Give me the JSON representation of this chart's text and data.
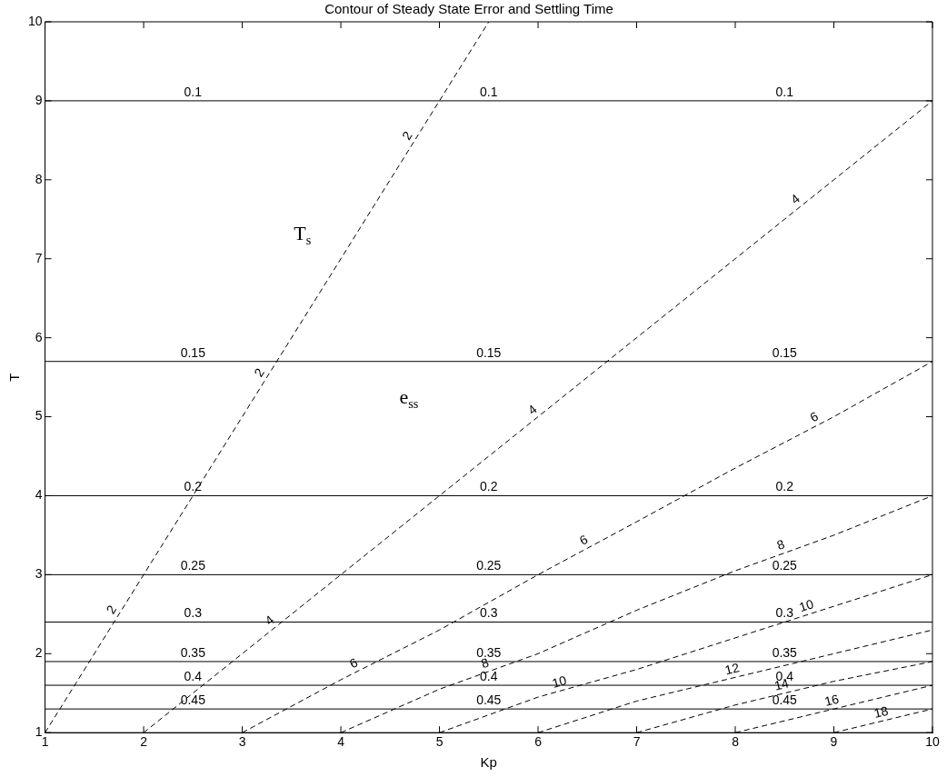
{
  "chart_data": {
    "type": "line",
    "title": "Contour of Steady State Error and Settling Time",
    "xlabel": "Kp",
    "ylabel": "T",
    "xlim": [
      1,
      10
    ],
    "ylim": [
      1,
      10
    ],
    "xticks": [
      1,
      2,
      3,
      4,
      5,
      6,
      7,
      8,
      9,
      10
    ],
    "yticks": [
      1,
      2,
      3,
      4,
      5,
      6,
      7,
      8,
      9,
      10
    ],
    "grid": false,
    "legend": false,
    "annotations": [
      "T$_{s}$",
      "e$_{ss}$"
    ],
    "series": [
      {
        "name": "0.1",
        "color": "#000000",
        "line_style": "solid",
        "x": [
          1,
          10
        ],
        "values": [
          9,
          9
        ]
      },
      {
        "name": "0.15",
        "color": "#000000",
        "line_style": "solid",
        "x": [
          1,
          10
        ],
        "values": [
          5.7,
          5.7
        ]
      },
      {
        "name": "0.2",
        "color": "#000000",
        "line_style": "solid",
        "x": [
          1,
          10
        ],
        "values": [
          4,
          4
        ]
      },
      {
        "name": "0.25",
        "color": "#000000",
        "line_style": "solid",
        "x": [
          1,
          10
        ],
        "values": [
          3,
          3
        ]
      },
      {
        "name": "0.3",
        "color": "#000000",
        "line_style": "solid",
        "x": [
          1,
          10
        ],
        "values": [
          2.4,
          2.4
        ]
      },
      {
        "name": "0.35",
        "color": "#000000",
        "line_style": "solid",
        "x": [
          1,
          10
        ],
        "values": [
          1.9,
          1.9
        ]
      },
      {
        "name": "0.4",
        "color": "#000000",
        "line_style": "solid",
        "x": [
          1,
          10
        ],
        "values": [
          1.6,
          1.6
        ]
      },
      {
        "name": "0.45",
        "color": "#000000",
        "line_style": "solid",
        "x": [
          1,
          10
        ],
        "values": [
          1.3,
          1.3
        ]
      },
      {
        "name": "2",
        "color": "#000000",
        "line_style": "dashed",
        "x": [
          1,
          5.5
        ],
        "values": [
          1,
          10
        ]
      },
      {
        "name": "4",
        "color": "#000000",
        "line_style": "dashed",
        "x": [
          2,
          10
        ],
        "values": [
          1,
          9
        ]
      },
      {
        "name": "6",
        "color": "#000000",
        "line_style": "dashed",
        "x": [
          3,
          4,
          5,
          6,
          7,
          8,
          9,
          10
        ],
        "values": [
          1,
          1.67,
          2.3,
          3,
          3.67,
          4.35,
          5,
          5.7
        ]
      },
      {
        "name": "8",
        "color": "#000000",
        "line_style": "dashed",
        "x": [
          4,
          5,
          6,
          7,
          8,
          9,
          10
        ],
        "values": [
          1,
          1.55,
          2,
          2.55,
          3.05,
          3.5,
          4
        ]
      },
      {
        "name": "10",
        "color": "#000000",
        "line_style": "dashed",
        "x": [
          5,
          6,
          7,
          8,
          9,
          10
        ],
        "values": [
          1,
          1.45,
          1.8,
          2.2,
          2.6,
          3
        ]
      },
      {
        "name": "12",
        "color": "#000000",
        "line_style": "dashed",
        "x": [
          6,
          7,
          8,
          9,
          10
        ],
        "values": [
          1,
          1.4,
          1.7,
          2,
          2.3
        ]
      },
      {
        "name": "14",
        "color": "#000000",
        "line_style": "dashed",
        "x": [
          7,
          8,
          9,
          10
        ],
        "values": [
          1,
          1.35,
          1.65,
          1.9
        ]
      },
      {
        "name": "16",
        "color": "#000000",
        "line_style": "dashed",
        "x": [
          8,
          9,
          10
        ],
        "values": [
          1,
          1.3,
          1.6
        ]
      },
      {
        "name": "18",
        "color": "#000000",
        "line_style": "dashed",
        "x": [
          9,
          10
        ],
        "values": [
          1,
          1.3
        ]
      }
    ]
  }
}
